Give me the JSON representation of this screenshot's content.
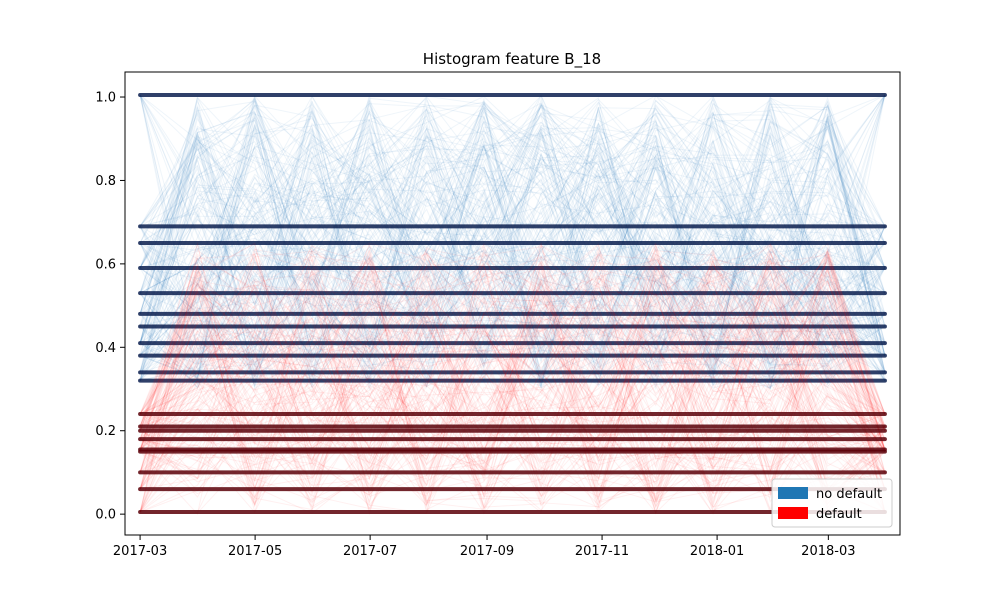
{
  "chart_data": {
    "type": "line",
    "title": "Histogram feature B_18",
    "xlabel": "",
    "ylabel": "",
    "x_ticks": [
      "2017-03",
      "2017-05",
      "2017-07",
      "2017-09",
      "2017-11",
      "2018-01",
      "2018-03"
    ],
    "y_ticks": [
      "0.0",
      "0.2",
      "0.4",
      "0.6",
      "0.8",
      "1.0"
    ],
    "xlim": [
      "2017-02-21",
      "2018-04-08"
    ],
    "ylim": [
      -0.05,
      1.06
    ],
    "x_range": [
      "2017-03-01",
      "2018-03-31"
    ],
    "grid": false,
    "legend_position": "lower right",
    "series": [
      {
        "name": "no default",
        "color": "#1f77b4",
        "dark_color": "#0b1f4f",
        "levels": [
          1.005,
          0.69,
          0.65,
          0.59,
          0.53,
          0.48,
          0.45,
          0.41,
          0.38,
          0.34,
          0.32
        ],
        "spread_range": [
          0.3,
          1.005
        ]
      },
      {
        "name": "default",
        "color": "#ff0000",
        "dark_color": "#5a0008",
        "levels": [
          0.24,
          0.21,
          0.2,
          0.18,
          0.155,
          0.15,
          0.1,
          0.06,
          0.005
        ],
        "spread_range": [
          0.0,
          0.65
        ]
      }
    ]
  }
}
